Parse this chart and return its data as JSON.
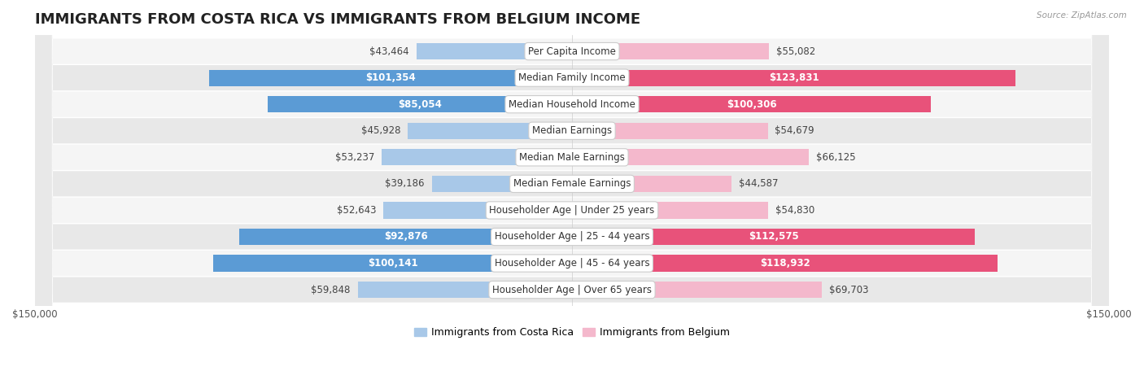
{
  "title": "IMMIGRANTS FROM COSTA RICA VS IMMIGRANTS FROM BELGIUM INCOME",
  "source": "Source: ZipAtlas.com",
  "categories": [
    "Per Capita Income",
    "Median Family Income",
    "Median Household Income",
    "Median Earnings",
    "Median Male Earnings",
    "Median Female Earnings",
    "Householder Age | Under 25 years",
    "Householder Age | 25 - 44 years",
    "Householder Age | 45 - 64 years",
    "Householder Age | Over 65 years"
  ],
  "costa_rica_values": [
    43464,
    101354,
    85054,
    45928,
    53237,
    39186,
    52643,
    92876,
    100141,
    59848
  ],
  "belgium_values": [
    55082,
    123831,
    100306,
    54679,
    66125,
    44587,
    54830,
    112575,
    118932,
    69703
  ],
  "costa_rica_color_light": "#a8c8e8",
  "costa_rica_color_dark": "#5b9bd5",
  "belgium_color_light": "#f4b8cc",
  "belgium_color_dark": "#e8527a",
  "costa_rica_label": "Immigrants from Costa Rica",
  "belgium_label": "Immigrants from Belgium",
  "xlim": 150000,
  "title_fontsize": 13,
  "label_fontsize": 8.5,
  "value_fontsize": 8.5,
  "legend_fontsize": 9,
  "background_color": "#ffffff",
  "row_bg_light": "#f5f5f5",
  "row_bg_dark": "#e8e8e8",
  "threshold_inside": 75000
}
